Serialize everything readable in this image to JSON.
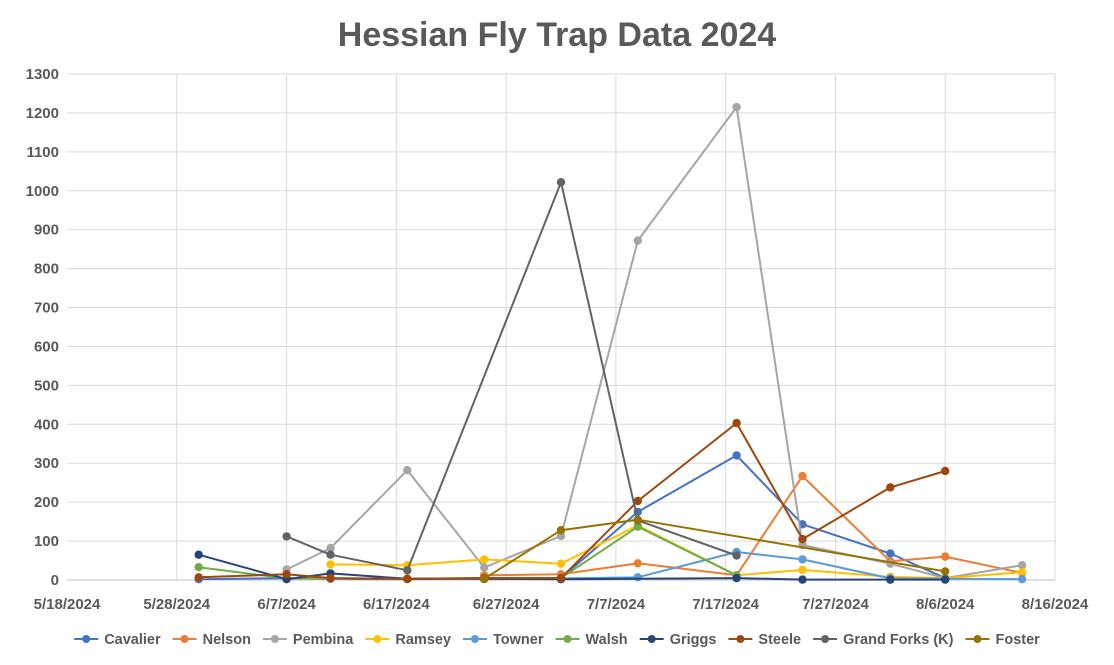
{
  "chart_data": {
    "type": "line",
    "title": "Hessian Fly Trap Data 2024",
    "xlabel": "",
    "ylabel": "",
    "x_axis": {
      "type": "date",
      "min": "5/18/2024",
      "max": "8/16/2024",
      "ticks": [
        "5/18/2024",
        "5/28/2024",
        "6/7/2024",
        "6/17/2024",
        "6/27/2024",
        "7/7/2024",
        "7/17/2024",
        "7/27/2024",
        "8/6/2024",
        "8/16/2024"
      ]
    },
    "ylim": [
      0,
      1300
    ],
    "y_ticks": [
      0,
      100,
      200,
      300,
      400,
      500,
      600,
      700,
      800,
      900,
      1000,
      1100,
      1200,
      1300
    ],
    "grid": true,
    "legend_position": "bottom",
    "series": [
      {
        "name": "Cavalier",
        "color": "#4472C4",
        "points": [
          {
            "x": "5/30/2024",
            "y": 2
          },
          {
            "x": "6/7/2024",
            "y": 5
          },
          {
            "x": "6/11/2024",
            "y": 3
          },
          {
            "x": "6/18/2024",
            "y": 2
          },
          {
            "x": "6/25/2024",
            "y": 5
          },
          {
            "x": "7/2/2024",
            "y": 5
          },
          {
            "x": "7/9/2024",
            "y": 175
          },
          {
            "x": "7/18/2024",
            "y": 320
          },
          {
            "x": "7/24/2024",
            "y": 143
          },
          {
            "x": "8/1/2024",
            "y": 68
          },
          {
            "x": "8/6/2024",
            "y": 5
          }
        ]
      },
      {
        "name": "Nelson",
        "color": "#ED7D31",
        "points": [
          {
            "x": "6/25/2024",
            "y": 12
          },
          {
            "x": "7/2/2024",
            "y": 15
          },
          {
            "x": "7/9/2024",
            "y": 43
          },
          {
            "x": "7/18/2024",
            "y": 12
          },
          {
            "x": "7/24/2024",
            "y": 267
          },
          {
            "x": "8/1/2024",
            "y": 48
          },
          {
            "x": "8/6/2024",
            "y": 60
          },
          {
            "x": "8/13/2024",
            "y": 18
          }
        ]
      },
      {
        "name": "Pembina",
        "color": "#A5A5A5",
        "points": [
          {
            "x": "6/7/2024",
            "y": 27
          },
          {
            "x": "6/11/2024",
            "y": 82
          },
          {
            "x": "6/18/2024",
            "y": 282
          },
          {
            "x": "6/25/2024",
            "y": 32
          },
          {
            "x": "7/2/2024",
            "y": 113
          },
          {
            "x": "7/9/2024",
            "y": 872
          },
          {
            "x": "7/18/2024",
            "y": 1215
          },
          {
            "x": "7/24/2024",
            "y": 90
          },
          {
            "x": "8/1/2024",
            "y": 42
          },
          {
            "x": "8/6/2024",
            "y": 5
          },
          {
            "x": "8/13/2024",
            "y": 38
          }
        ]
      },
      {
        "name": "Ramsey",
        "color": "#FFC000",
        "points": [
          {
            "x": "6/11/2024",
            "y": 40
          },
          {
            "x": "6/18/2024",
            "y": 38
          },
          {
            "x": "6/25/2024",
            "y": 53
          },
          {
            "x": "7/2/2024",
            "y": 42
          },
          {
            "x": "7/9/2024",
            "y": 140
          },
          {
            "x": "7/18/2024",
            "y": 12
          },
          {
            "x": "7/24/2024",
            "y": 26
          },
          {
            "x": "8/1/2024",
            "y": 8
          },
          {
            "x": "8/6/2024",
            "y": 5
          },
          {
            "x": "8/13/2024",
            "y": 20
          }
        ]
      },
      {
        "name": "Towner",
        "color": "#5B9BD5",
        "points": [
          {
            "x": "6/25/2024",
            "y": 2
          },
          {
            "x": "7/2/2024",
            "y": 4
          },
          {
            "x": "7/9/2024",
            "y": 7
          },
          {
            "x": "7/18/2024",
            "y": 72
          },
          {
            "x": "7/24/2024",
            "y": 53
          },
          {
            "x": "8/1/2024",
            "y": 4
          },
          {
            "x": "8/6/2024",
            "y": 3
          },
          {
            "x": "8/13/2024",
            "y": 2
          }
        ]
      },
      {
        "name": "Walsh",
        "color": "#70AD47",
        "points": [
          {
            "x": "5/30/2024",
            "y": 33
          },
          {
            "x": "6/7/2024",
            "y": 4
          },
          {
            "x": "6/11/2024",
            "y": 4
          },
          {
            "x": "6/18/2024",
            "y": 3
          },
          {
            "x": "6/25/2024",
            "y": 5
          },
          {
            "x": "7/2/2024",
            "y": 5
          },
          {
            "x": "7/9/2024",
            "y": 137
          },
          {
            "x": "7/18/2024",
            "y": 12
          }
        ]
      },
      {
        "name": "Griggs",
        "color": "#264478",
        "points": [
          {
            "x": "5/30/2024",
            "y": 65
          },
          {
            "x": "6/7/2024",
            "y": 2
          },
          {
            "x": "6/11/2024",
            "y": 17
          },
          {
            "x": "6/18/2024",
            "y": 3
          },
          {
            "x": "6/25/2024",
            "y": 3
          },
          {
            "x": "7/2/2024",
            "y": 2
          },
          {
            "x": "7/18/2024",
            "y": 5
          },
          {
            "x": "7/24/2024",
            "y": 1
          },
          {
            "x": "8/1/2024",
            "y": 1
          },
          {
            "x": "8/6/2024",
            "y": 1
          }
        ]
      },
      {
        "name": "Steele",
        "color": "#9E480E",
        "points": [
          {
            "x": "5/30/2024",
            "y": 7
          },
          {
            "x": "6/7/2024",
            "y": 15
          },
          {
            "x": "6/11/2024",
            "y": 5
          },
          {
            "x": "6/18/2024",
            "y": 3
          },
          {
            "x": "6/25/2024",
            "y": 5
          },
          {
            "x": "7/2/2024",
            "y": 5
          },
          {
            "x": "7/9/2024",
            "y": 203
          },
          {
            "x": "7/18/2024",
            "y": 403
          },
          {
            "x": "7/24/2024",
            "y": 105
          },
          {
            "x": "8/1/2024",
            "y": 238
          },
          {
            "x": "8/6/2024",
            "y": 280
          }
        ]
      },
      {
        "name": "Grand Forks (K)",
        "color": "#636363",
        "points": [
          {
            "x": "6/7/2024",
            "y": 112
          },
          {
            "x": "6/11/2024",
            "y": 65
          },
          {
            "x": "6/18/2024",
            "y": 25
          },
          {
            "x": "7/2/2024",
            "y": 1022
          },
          {
            "x": "7/9/2024",
            "y": 153
          },
          {
            "x": "7/18/2024",
            "y": 63
          }
        ]
      },
      {
        "name": "Foster",
        "color": "#997300",
        "points": [
          {
            "x": "6/25/2024",
            "y": 3
          },
          {
            "x": "7/2/2024",
            "y": 128
          },
          {
            "x": "7/9/2024",
            "y": 155
          },
          {
            "x": "8/6/2024",
            "y": 22
          }
        ]
      }
    ]
  }
}
